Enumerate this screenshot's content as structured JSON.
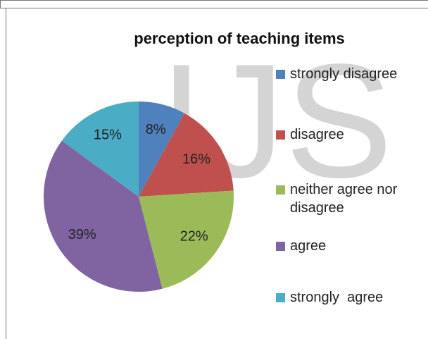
{
  "chart_data": {
    "type": "pie",
    "title": "perception of teaching items",
    "watermark": "IJS",
    "categories": [
      "strongly disagree",
      "disagree",
      "neither agree nor disagree",
      "agree",
      "strongly  agree"
    ],
    "values": [
      8,
      16,
      22,
      39,
      15
    ],
    "value_labels": [
      "8%",
      "16%",
      "22%",
      "39%",
      "15%"
    ],
    "colors": [
      "#4f81bd",
      "#c0504d",
      "#9bbb59",
      "#8064a2",
      "#4bacc6"
    ],
    "legend": "right"
  }
}
